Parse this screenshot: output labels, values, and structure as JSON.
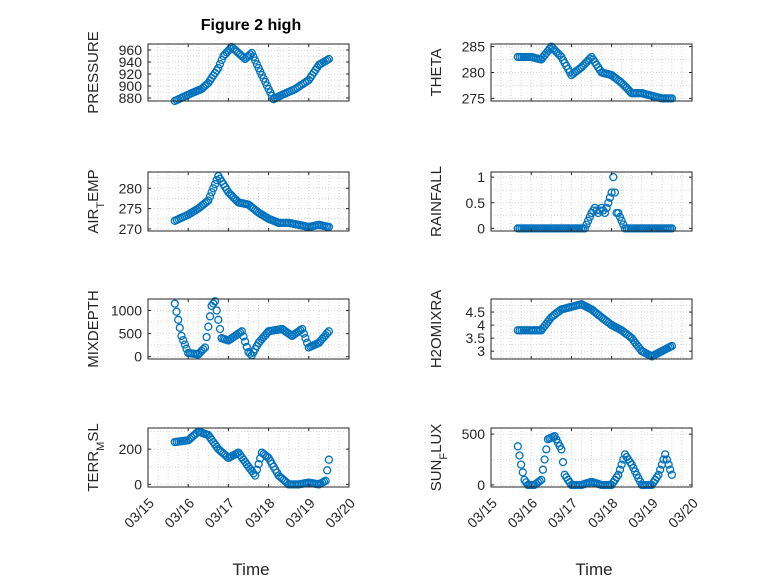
{
  "figure": {
    "title": "Figure 2 high",
    "xlabel": "Time",
    "x_ticks": [
      "03/15",
      "03/16",
      "03/17",
      "03/18",
      "03/19",
      "03/20"
    ],
    "marker_color": "#0072bd"
  },
  "chart_data": [
    {
      "type": "scatter",
      "name": "PRESSURE",
      "ylabel": "PRESSURE",
      "ylabel_base": "PRESSURE",
      "ylabel_sub": "",
      "ylabel_rest": "",
      "xlim": [
        "03/15",
        "03/20"
      ],
      "ylim": [
        875,
        970
      ],
      "yticks": [
        880,
        900,
        920,
        940,
        960
      ],
      "grid": true,
      "x": [
        "03/15 16:00",
        "03/16 02:00",
        "03/16 08:00",
        "03/16 12:00",
        "03/16 18:00",
        "03/16 21:00",
        "03/17 02:00",
        "03/17 06:00",
        "03/17 10:00",
        "03/17 14:00",
        "03/17 18:00",
        "03/18 00:00",
        "03/18 03:00",
        "03/18 08:00",
        "03/18 16:00",
        "03/19 00:00",
        "03/19 06:00",
        "03/19 12:00"
      ],
      "y": [
        875,
        888,
        895,
        905,
        930,
        950,
        965,
        955,
        945,
        955,
        930,
        895,
        878,
        885,
        895,
        910,
        935,
        945
      ]
    },
    {
      "type": "scatter",
      "name": "THETA",
      "ylabel": "THETA",
      "ylabel_base": "THETA",
      "ylabel_sub": "",
      "ylabel_rest": "",
      "xlim": [
        "03/15",
        "03/20"
      ],
      "ylim": [
        274.5,
        285.5
      ],
      "yticks": [
        275,
        280,
        285
      ],
      "grid": true,
      "x": [
        "03/15 16:00",
        "03/16 00:00",
        "03/16 06:00",
        "03/16 12:00",
        "03/16 18:00",
        "03/17 00:00",
        "03/17 06:00",
        "03/17 12:00",
        "03/17 18:00",
        "03/18 00:00",
        "03/18 06:00",
        "03/18 12:00",
        "03/18 18:00",
        "03/19 00:00",
        "03/19 06:00",
        "03/19 12:00"
      ],
      "y": [
        283,
        283,
        282.5,
        285,
        283,
        279.5,
        281,
        283,
        280,
        279.5,
        278,
        276,
        276,
        275.5,
        275,
        275
      ]
    },
    {
      "type": "scatter",
      "name": "AIR_TEMP",
      "ylabel": "AIR_TEMP",
      "ylabel_base": "AIR",
      "ylabel_sub": "T",
      "ylabel_rest": "EMP",
      "xlim": [
        "03/15",
        "03/20"
      ],
      "ylim": [
        269.5,
        284
      ],
      "yticks": [
        270,
        275,
        280
      ],
      "grid": true,
      "x": [
        "03/15 16:00",
        "03/16 00:00",
        "03/16 06:00",
        "03/16 12:00",
        "03/16 18:00",
        "03/17 00:00",
        "03/17 06:00",
        "03/17 12:00",
        "03/17 18:00",
        "03/18 00:00",
        "03/18 06:00",
        "03/18 12:00",
        "03/18 18:00",
        "03/19 00:00",
        "03/19 06:00",
        "03/19 12:00"
      ],
      "y": [
        272,
        273.5,
        275,
        277,
        283,
        279,
        276.5,
        276,
        274,
        272.5,
        271.5,
        271.5,
        271,
        270.5,
        271,
        270.5
      ]
    },
    {
      "type": "scatter",
      "name": "RAINFALL",
      "ylabel": "RAINFALL",
      "ylabel_base": "RAINFALL",
      "ylabel_sub": "",
      "ylabel_rest": "",
      "xlim": [
        "03/15",
        "03/20"
      ],
      "ylim": [
        -0.05,
        1.1
      ],
      "yticks": [
        0,
        0.5,
        1
      ],
      "grid": true,
      "x": [
        "03/15 16:00",
        "03/16 00:00",
        "03/16 08:00",
        "03/16 16:00",
        "03/17 00:00",
        "03/17 08:00",
        "03/17 12:00",
        "03/17 14:00",
        "03/17 16:00",
        "03/17 18:00",
        "03/17 20:00",
        "03/17 22:00",
        "03/18 00:00",
        "03/18 01:00",
        "03/18 02:00",
        "03/18 03:00",
        "03/18 04:00",
        "03/18 08:00",
        "03/18 16:00",
        "03/19 00:00",
        "03/19 08:00",
        "03/19 12:00"
      ],
      "y": [
        0,
        0,
        0,
        0,
        0,
        0,
        0.3,
        0.4,
        0.3,
        0.4,
        0.3,
        0.5,
        0.7,
        1.0,
        0.7,
        0.3,
        0.3,
        0,
        0,
        0,
        0,
        0
      ]
    },
    {
      "type": "scatter",
      "name": "MIXDEPTH",
      "ylabel": "MIXDEPTH",
      "ylabel_base": "MIXDEPTH",
      "ylabel_sub": "",
      "ylabel_rest": "",
      "xlim": [
        "03/15",
        "03/20"
      ],
      "ylim": [
        -50,
        1250
      ],
      "yticks": [
        0,
        500,
        1000
      ],
      "grid": true,
      "x": [
        "03/15 16:00",
        "03/15 18:00",
        "03/15 20:00",
        "03/16 00:00",
        "03/16 06:00",
        "03/16 10:00",
        "03/16 14:00",
        "03/16 16:00",
        "03/16 20:00",
        "03/17 00:00",
        "03/17 04:00",
        "03/17 08:00",
        "03/17 12:00",
        "03/17 14:00",
        "03/17 18:00",
        "03/18 00:00",
        "03/18 08:00",
        "03/18 14:00",
        "03/18 20:00",
        "03/19 00:00",
        "03/19 06:00",
        "03/19 12:00"
      ],
      "y": [
        1150,
        800,
        450,
        80,
        50,
        200,
        1100,
        1200,
        400,
        350,
        450,
        550,
        100,
        30,
        300,
        550,
        600,
        450,
        600,
        200,
        300,
        550
      ]
    },
    {
      "type": "scatter",
      "name": "H2OMIXRA",
      "ylabel": "H2OMIXRA",
      "ylabel_base": "H2OMIXRA",
      "ylabel_sub": "",
      "ylabel_rest": "",
      "xlim": [
        "03/15",
        "03/20"
      ],
      "ylim": [
        2.7,
        5.0
      ],
      "yticks": [
        3,
        3.5,
        4,
        4.5
      ],
      "grid": true,
      "x": [
        "03/15 16:00",
        "03/16 00:00",
        "03/16 06:00",
        "03/16 12:00",
        "03/16 18:00",
        "03/17 00:00",
        "03/17 06:00",
        "03/17 12:00",
        "03/17 18:00",
        "03/18 00:00",
        "03/18 06:00",
        "03/18 12:00",
        "03/18 18:00",
        "03/19 00:00",
        "03/19 06:00",
        "03/19 12:00"
      ],
      "y": [
        3.8,
        3.8,
        3.8,
        4.3,
        4.6,
        4.7,
        4.8,
        4.6,
        4.3,
        4.0,
        3.8,
        3.5,
        3.0,
        2.8,
        3.0,
        3.2
      ]
    },
    {
      "type": "scatter",
      "name": "TERR_MSL",
      "ylabel": "TERR_MSL",
      "ylabel_base": "TERR",
      "ylabel_sub": "M",
      "ylabel_rest": "SL",
      "xlim": [
        "03/15",
        "03/20"
      ],
      "ylim": [
        -15,
        320
      ],
      "yticks": [
        0,
        200
      ],
      "grid": true,
      "x": [
        "03/15 16:00",
        "03/16 00:00",
        "03/16 06:00",
        "03/16 12:00",
        "03/16 18:00",
        "03/17 00:00",
        "03/17 06:00",
        "03/17 12:00",
        "03/17 16:00",
        "03/17 20:00",
        "03/18 00:00",
        "03/18 06:00",
        "03/18 12:00",
        "03/18 18:00",
        "03/19 00:00",
        "03/19 06:00",
        "03/19 10:00",
        "03/19 12:00"
      ],
      "y": [
        240,
        250,
        300,
        280,
        200,
        150,
        180,
        100,
        50,
        180,
        150,
        50,
        0,
        0,
        10,
        0,
        20,
        140
      ]
    },
    {
      "type": "scatter",
      "name": "SUN_FLUX",
      "ylabel": "SUN_FLUX",
      "ylabel_base": "SUN",
      "ylabel_sub": "F",
      "ylabel_rest": "LUX",
      "xlim": [
        "03/15",
        "03/20"
      ],
      "ylim": [
        -20,
        560
      ],
      "yticks": [
        0,
        500
      ],
      "grid": true,
      "x": [
        "03/15 16:00",
        "03/15 18:00",
        "03/15 20:00",
        "03/15 22:00",
        "03/16 02:00",
        "03/16 06:00",
        "03/16 10:00",
        "03/16 14:00",
        "03/16 18:00",
        "03/16 20:00",
        "03/17 00:00",
        "03/17 06:00",
        "03/17 12:00",
        "03/17 18:00",
        "03/18 00:00",
        "03/18 04:00",
        "03/18 08:00",
        "03/18 12:00",
        "03/18 18:00",
        "03/19 00:00",
        "03/19 04:00",
        "03/19 08:00",
        "03/19 10:00",
        "03/19 12:00"
      ],
      "y": [
        380,
        200,
        50,
        0,
        0,
        50,
        450,
        480,
        350,
        100,
        0,
        0,
        30,
        0,
        0,
        100,
        300,
        200,
        0,
        0,
        100,
        300,
        200,
        100
      ]
    }
  ]
}
